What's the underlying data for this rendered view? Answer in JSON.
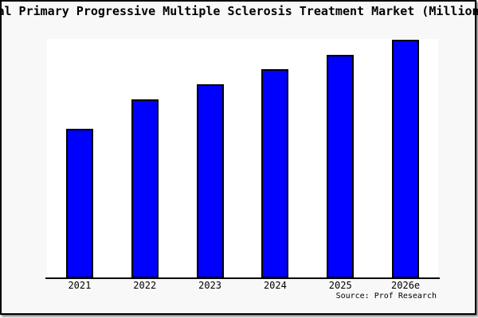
{
  "page": {
    "title": "al Primary Progressive Multiple Sclerosis Treatment Market (Million",
    "source_note": "Source: Prof Research"
  },
  "colors": {
    "page_background": "#f8f8f8",
    "plot_background": "#ffffff",
    "bar_fill": "#0000ff",
    "bar_border": "#000000",
    "frame_border": "#000000",
    "text": "#000000"
  },
  "chart_data": {
    "type": "bar",
    "title": "al Primary Progressive Multiple Sclerosis Treatment Market (Million",
    "categories": [
      "2021",
      "2022",
      "2023",
      "2024",
      "2025",
      "2026e"
    ],
    "values": [
      62.7,
      75.0,
      81.3,
      87.7,
      93.7,
      100.0
    ],
    "values_note": "y-axis is unlabeled; values estimated as bar height in % of tallest (2026e) bar",
    "xlabel": "",
    "ylabel": "",
    "grid": false,
    "legend": false,
    "source": "Source: Prof Research"
  }
}
